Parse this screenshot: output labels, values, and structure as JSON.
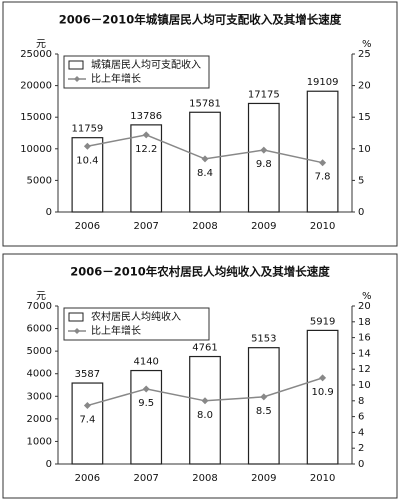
{
  "chart_data": [
    {
      "type": "bar",
      "title": "2006－2010年城镇居民人均可支配收入及其增长速度",
      "y_label": "元",
      "y2_label": "%",
      "categories": [
        "2006",
        "2007",
        "2008",
        "2009",
        "2010"
      ],
      "series": [
        {
          "name": "城镇居民人均可支配收入",
          "type": "bar",
          "color": "#ffffff",
          "values": [
            11759,
            13786,
            15781,
            17175,
            19109
          ]
        },
        {
          "name": "比上年增长",
          "type": "line",
          "axis": "y2",
          "color": "#888888",
          "values": [
            10.4,
            12.2,
            8.4,
            9.8,
            7.8
          ]
        }
      ],
      "ylim": [
        0,
        25000
      ],
      "yticks": [
        0,
        5000,
        10000,
        15000,
        20000,
        25000
      ],
      "y2lim": [
        0,
        25
      ],
      "y2ticks": [
        0,
        5,
        10,
        15,
        20,
        25
      ],
      "legend": "upper-left"
    },
    {
      "type": "bar",
      "title": "2006－2010年农村居民人均纯收入及其增长速度",
      "y_label": "元",
      "y2_label": "%",
      "categories": [
        "2006",
        "2007",
        "2008",
        "2009",
        "2010"
      ],
      "series": [
        {
          "name": "农村居民人均纯收入",
          "type": "bar",
          "color": "#ffffff",
          "values": [
            3587,
            4140,
            4761,
            5153,
            5919
          ]
        },
        {
          "name": "比上年增长",
          "type": "line",
          "axis": "y2",
          "color": "#888888",
          "values": [
            7.4,
            9.5,
            8.0,
            8.5,
            10.9
          ],
          "value_labels": [
            "7.4",
            "9.5",
            "8.0",
            "8.5",
            "10.9"
          ]
        }
      ],
      "ylim": [
        0,
        7000
      ],
      "yticks": [
        0,
        1000,
        2000,
        3000,
        4000,
        5000,
        6000,
        7000
      ],
      "y2lim": [
        0,
        20
      ],
      "y2ticks": [
        0,
        2,
        4,
        6,
        8,
        10,
        12,
        14,
        16,
        18,
        20
      ],
      "legend": "upper-left"
    }
  ]
}
